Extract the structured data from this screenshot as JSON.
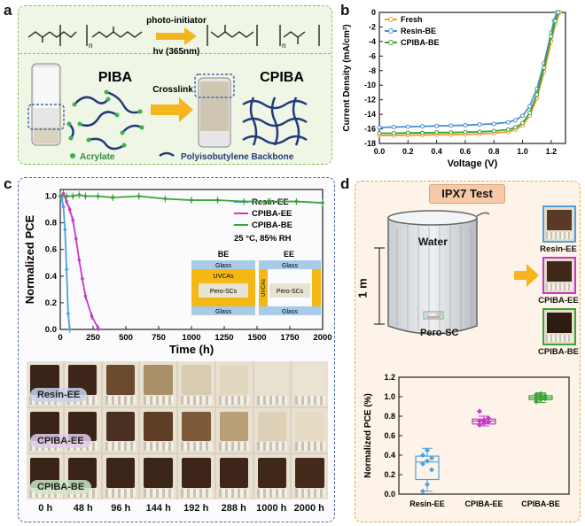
{
  "panel_letters": {
    "a": "a",
    "b": "b",
    "c": "c",
    "d": "d"
  },
  "colors": {
    "green_border": "#8bbf5a",
    "blue_border": "#4a66a8",
    "orange_border": "#e8a54b",
    "resin": "#4aa3df",
    "cpiba_ee": "#c63bc6",
    "cpiba_be": "#3aa33a",
    "fresh": "#f59a23",
    "arrow": "#f5b51f"
  },
  "panel_a": {
    "reaction_top": "photo-initiator",
    "reaction_bottom": "hv (365nm)",
    "subscript_n": "n",
    "pib_label": "PIBA",
    "cpib_label": "CPIBA",
    "arrow_label": "Crosslink",
    "legend_acrylate": "Acrylate",
    "legend_backbone": "Polyisobutylene Backbone"
  },
  "panel_c_photos": {
    "rows": [
      "Resin-EE",
      "CPIBA-EE",
      "CPIBA-BE"
    ],
    "times": [
      "0 h",
      "48 h",
      "96 h",
      "144 h",
      "192 h",
      "288 h",
      "1000 h",
      "2000 h"
    ]
  },
  "panel_d": {
    "title": "IPX7 Test",
    "water_label": "Water",
    "depth_label": "1 m",
    "device_label": "Pero-SC",
    "photo_labels": [
      "Resin-EE",
      "CPIBA-EE",
      "CPIBA-BE"
    ]
  },
  "chart_data": [
    {
      "id": "b",
      "type": "line",
      "xlabel": "Voltage (V)",
      "ylabel": "Current Density (mA/cm²)",
      "xlim": [
        0.0,
        1.3
      ],
      "ylim": [
        -18,
        0
      ],
      "xticks": [
        "0.0",
        "0.2",
        "0.4",
        "0.6",
        "0.8",
        "1.0",
        "1.2"
      ],
      "yticks": [
        "0",
        "-2",
        "-4",
        "-6",
        "-8",
        "-10",
        "-12",
        "-14",
        "-16",
        "-18"
      ],
      "series": [
        {
          "name": "Fresh",
          "color": "#f59a23",
          "x": [
            0,
            0.1,
            0.2,
            0.3,
            0.4,
            0.5,
            0.6,
            0.7,
            0.8,
            0.9,
            0.95,
            1.0,
            1.05,
            1.1,
            1.15,
            1.2,
            1.23,
            1.26
          ],
          "y": [
            -16.9,
            -16.9,
            -16.85,
            -16.85,
            -16.8,
            -16.8,
            -16.75,
            -16.7,
            -16.6,
            -16.4,
            -16.1,
            -15.5,
            -14.2,
            -11.8,
            -8.2,
            -4.0,
            -1.6,
            0
          ]
        },
        {
          "name": "Resin-BE",
          "color": "#4a8fd6",
          "x": [
            0,
            0.1,
            0.2,
            0.3,
            0.4,
            0.5,
            0.6,
            0.7,
            0.8,
            0.9,
            0.95,
            1.0,
            1.05,
            1.1,
            1.15,
            1.2,
            1.22,
            1.24
          ],
          "y": [
            -15.8,
            -15.75,
            -15.7,
            -15.65,
            -15.6,
            -15.55,
            -15.5,
            -15.4,
            -15.3,
            -15.1,
            -14.8,
            -14.2,
            -12.9,
            -10.5,
            -7.0,
            -2.8,
            -1.1,
            0
          ]
        },
        {
          "name": "CPIBA-BE",
          "color": "#3aa33a",
          "x": [
            0,
            0.1,
            0.2,
            0.3,
            0.4,
            0.5,
            0.6,
            0.7,
            0.8,
            0.9,
            0.95,
            1.0,
            1.05,
            1.1,
            1.15,
            1.2,
            1.23,
            1.25
          ],
          "y": [
            -16.6,
            -16.6,
            -16.55,
            -16.55,
            -16.5,
            -16.5,
            -16.45,
            -16.4,
            -16.3,
            -16.1,
            -15.8,
            -15.2,
            -13.8,
            -11.3,
            -7.6,
            -3.3,
            -1.2,
            0
          ]
        }
      ]
    },
    {
      "id": "c",
      "type": "line",
      "xlabel": "Time (h)",
      "ylabel": "Normalized PCE",
      "xlim": [
        0,
        2000
      ],
      "ylim": [
        0.0,
        1.05
      ],
      "xticks": [
        "0",
        "250",
        "500",
        "750",
        "1000",
        "1250",
        "1500",
        "1750",
        "2000"
      ],
      "yticks": [
        "0.0",
        "0.2",
        "0.4",
        "0.6",
        "0.8",
        "1.0"
      ],
      "condition": "25 °C, 85% RH",
      "inset": {
        "be_title": "BE",
        "ee_title": "EE",
        "glass": "Glass",
        "uvcas": "UVCAs",
        "pero": "Pero-SCs"
      },
      "series": [
        {
          "name": "Resin-EE",
          "color": "#4aa3df",
          "x": [
            0,
            12,
            24,
            36,
            48,
            60,
            72
          ],
          "y": [
            1.0,
            0.98,
            0.92,
            0.75,
            0.45,
            0.12,
            0.0
          ]
        },
        {
          "name": "CPIBA-EE",
          "color": "#c63bc6",
          "x": [
            0,
            24,
            48,
            72,
            96,
            120,
            144,
            168,
            192,
            240,
            288
          ],
          "y": [
            1.0,
            1.02,
            0.96,
            0.9,
            0.82,
            0.68,
            0.52,
            0.38,
            0.25,
            0.1,
            0.01
          ]
        },
        {
          "name": "CPIBA-BE",
          "color": "#3aa33a",
          "x": [
            0,
            48,
            96,
            144,
            192,
            288,
            400,
            600,
            800,
            1000,
            1200,
            1400,
            1600,
            1800,
            2000
          ],
          "y": [
            1.0,
            1.0,
            1.0,
            1.01,
            1.0,
            1.0,
            0.99,
            1.0,
            0.98,
            0.97,
            0.97,
            0.96,
            0.96,
            0.96,
            0.95
          ]
        }
      ]
    },
    {
      "id": "d",
      "type": "box",
      "ylabel": "Normalized PCE (%)",
      "ylim": [
        0.0,
        1.2
      ],
      "yticks": [
        "0.0",
        "0.2",
        "0.4",
        "0.6",
        "0.8",
        "1.0",
        "1.2"
      ],
      "categories": [
        "Resin-EE",
        "CPIBA-EE",
        "CPIBA-BE"
      ],
      "boxes": [
        {
          "name": "Resin-EE",
          "color": "#4aa3df",
          "q1": 0.15,
          "median": 0.33,
          "q3": 0.39,
          "min": 0.03,
          "max": 0.47,
          "points": [
            0.03,
            0.1,
            0.25,
            0.31,
            0.34,
            0.37,
            0.4,
            0.45
          ]
        },
        {
          "name": "CPIBA-EE",
          "color": "#c63bc6",
          "q1": 0.72,
          "median": 0.75,
          "q3": 0.77,
          "min": 0.7,
          "max": 0.8,
          "points": [
            0.71,
            0.73,
            0.74,
            0.75,
            0.76,
            0.78,
            0.85
          ]
        },
        {
          "name": "CPIBA-BE",
          "color": "#3aa33a",
          "q1": 0.97,
          "median": 0.99,
          "q3": 1.01,
          "min": 0.94,
          "max": 1.04,
          "points": [
            0.95,
            0.97,
            0.98,
            0.99,
            1.0,
            1.01,
            1.02,
            1.03
          ]
        }
      ]
    }
  ]
}
